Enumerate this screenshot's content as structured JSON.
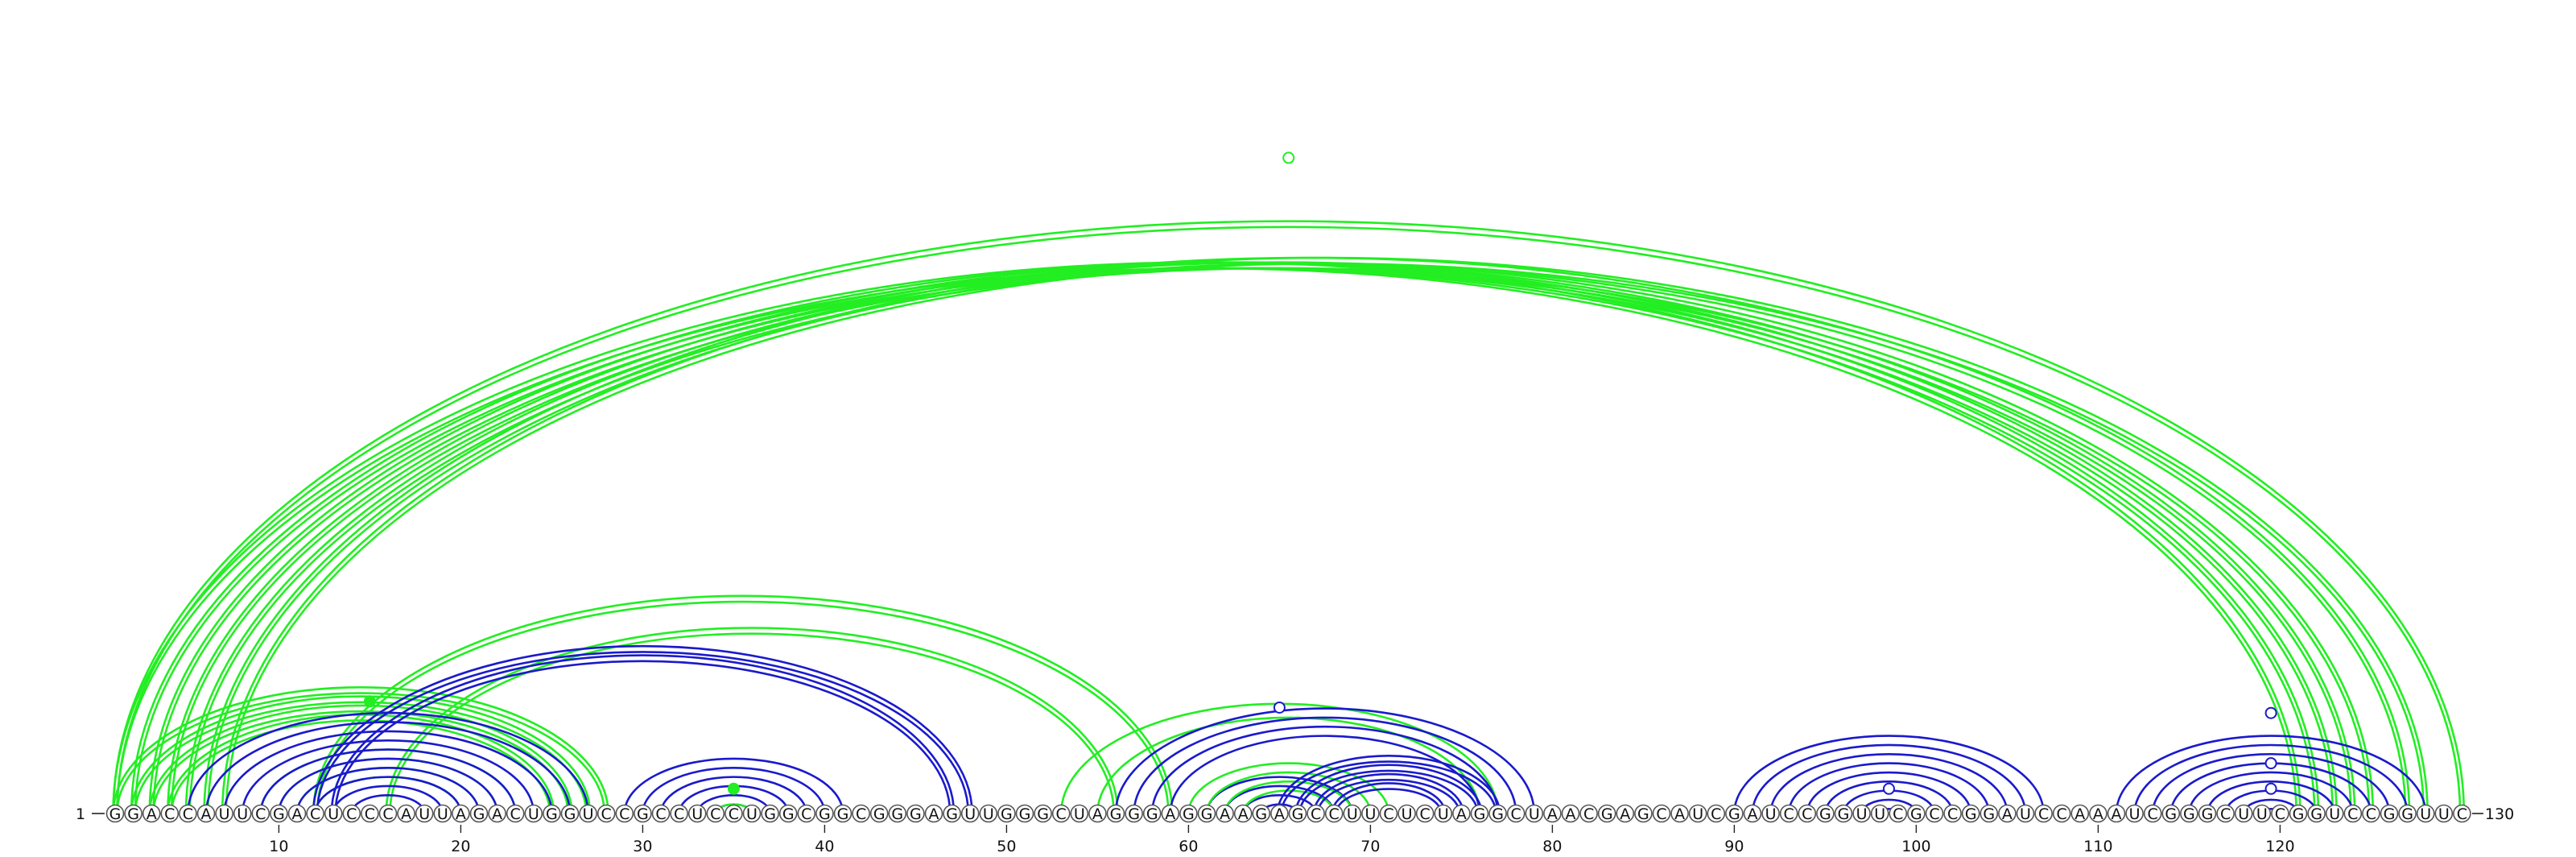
{
  "diagram": {
    "sequence": "GGACCAUUCGACUCCCAUUAGACUGGUCCGCCUCCUGGCGGCGGGAGUUGGGCUAGGGAGGAAGAGCCUUCUCUAGGCUAACGAGCAUCGAUCCGGUUCGCCGGAUCCAAAUCGGGCUUCGGUCCGGUUC",
    "start_label": "1",
    "end_label": "130",
    "ticks": [
      {
        "pos": 10,
        "label": "10"
      },
      {
        "pos": 20,
        "label": "20"
      },
      {
        "pos": 30,
        "label": "30"
      },
      {
        "pos": 40,
        "label": "40"
      },
      {
        "pos": 50,
        "label": "50"
      },
      {
        "pos": 60,
        "label": "60"
      },
      {
        "pos": 70,
        "label": "70"
      },
      {
        "pos": 80,
        "label": "80"
      },
      {
        "pos": 90,
        "label": "90"
      },
      {
        "pos": 100,
        "label": "100"
      },
      {
        "pos": 110,
        "label": "110"
      },
      {
        "pos": 120,
        "label": "120"
      }
    ],
    "colors": {
      "green": "#22ee22",
      "blue": "#1a1acc"
    },
    "arc_sets": [
      {
        "color": "green",
        "double": true,
        "pairs": [
          [
            1,
            121
          ],
          [
            2,
            122
          ],
          [
            3,
            123
          ],
          [
            4,
            124
          ],
          [
            5,
            125
          ],
          [
            6,
            127
          ],
          [
            7,
            128
          ],
          [
            1,
            130
          ]
        ]
      },
      {
        "color": "green",
        "double": true,
        "pairs": [
          [
            1,
            28
          ],
          [
            2,
            27
          ],
          [
            3,
            26
          ],
          [
            4,
            25
          ]
        ]
      },
      {
        "color": "green",
        "double": false,
        "pairs": [
          [
            9,
            23
          ],
          [
            10,
            22
          ],
          [
            11,
            21
          ],
          [
            12,
            20
          ]
        ]
      },
      {
        "color": "green",
        "double": true,
        "pairs": [
          [
            12,
            59
          ],
          [
            16,
            56
          ]
        ]
      },
      {
        "color": "blue",
        "double": false,
        "pairs": [
          [
            5,
            27
          ],
          [
            6,
            26
          ],
          [
            7,
            25
          ],
          [
            8,
            24
          ],
          [
            9,
            23
          ],
          [
            10,
            22
          ],
          [
            11,
            21
          ],
          [
            12,
            20
          ],
          [
            13,
            19
          ],
          [
            14,
            18
          ]
        ]
      },
      {
        "color": "blue",
        "double": true,
        "pairs": [
          [
            12,
            48
          ],
          [
            13,
            47
          ]
        ]
      },
      {
        "color": "blue",
        "double": false,
        "pairs": [
          [
            29,
            41
          ],
          [
            30,
            40
          ],
          [
            31,
            39
          ],
          [
            32,
            38
          ],
          [
            33,
            37
          ],
          [
            34,
            36
          ]
        ]
      },
      {
        "color": "green",
        "double": false,
        "pairs": [
          [
            34,
            36
          ]
        ]
      },
      {
        "color": "green",
        "double": false,
        "pairs": [
          [
            53,
            77
          ],
          [
            55,
            76
          ]
        ]
      },
      {
        "color": "blue",
        "double": false,
        "pairs": [
          [
            56,
            79
          ],
          [
            57,
            78
          ],
          [
            58,
            77
          ],
          [
            59,
            76
          ],
          [
            61,
            69
          ],
          [
            62,
            68
          ],
          [
            63,
            67
          ],
          [
            64,
            66
          ]
        ]
      },
      {
        "color": "green",
        "double": false,
        "pairs": [
          [
            60,
            71
          ],
          [
            61,
            70
          ],
          [
            62,
            69
          ],
          [
            63,
            68
          ]
        ]
      },
      {
        "color": "blue",
        "double": true,
        "pairs": [
          [
            65,
            77
          ],
          [
            66,
            76
          ],
          [
            67,
            75
          ],
          [
            68,
            74
          ]
        ]
      },
      {
        "color": "blue",
        "double": false,
        "pairs": [
          [
            90,
            107
          ],
          [
            91,
            106
          ],
          [
            92,
            105
          ],
          [
            93,
            104
          ],
          [
            94,
            103
          ],
          [
            95,
            102
          ],
          [
            96,
            101
          ],
          [
            97,
            100
          ],
          [
            98,
            99
          ]
        ]
      },
      {
        "color": "blue",
        "double": false,
        "pairs": [
          [
            111,
            128
          ],
          [
            112,
            127
          ],
          [
            113,
            126
          ],
          [
            114,
            125
          ],
          [
            115,
            124
          ],
          [
            116,
            123
          ],
          [
            117,
            122
          ],
          [
            118,
            121
          ],
          [
            119,
            120
          ]
        ]
      }
    ],
    "markers": [
      {
        "center": 65.5,
        "height": 0.848,
        "fill": "open"
      },
      {
        "center": 15.0,
        "height": 0.145,
        "fill": "green"
      },
      {
        "center": 35.0,
        "height": 0.032,
        "fill": "green"
      },
      {
        "center": 65.0,
        "height": 0.137,
        "fill": "open"
      },
      {
        "center": 98.5,
        "height": 0.032,
        "fill": "open"
      },
      {
        "center": 119.5,
        "height": 0.13,
        "fill": "open"
      },
      {
        "center": 119.5,
        "height": 0.065,
        "fill": "open"
      },
      {
        "center": 119.5,
        "height": 0.032,
        "fill": "open"
      }
    ]
  }
}
